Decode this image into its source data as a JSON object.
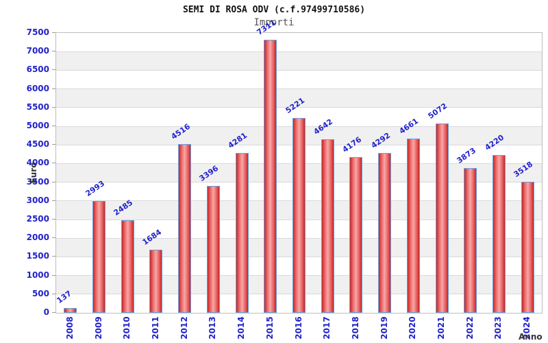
{
  "chart_data": {
    "type": "bar",
    "title": "SEMI DI ROSA ODV (c.f.97499710586)",
    "subtitle": "Importi",
    "xlabel": "Anno",
    "ylabel": "Euro",
    "categories": [
      "2008",
      "2009",
      "2010",
      "2011",
      "2012",
      "2013",
      "2014",
      "2015",
      "2016",
      "2017",
      "2018",
      "2019",
      "2020",
      "2021",
      "2022",
      "2023",
      "2024"
    ],
    "values": [
      137,
      2993,
      2485,
      1684,
      4516,
      3396,
      4281,
      7311,
      5221,
      4642,
      4176,
      4292,
      4661,
      5072,
      3873,
      4220,
      3518
    ],
    "ylim": [
      0,
      7500
    ],
    "ytick_step": 500,
    "grid": true,
    "legend": "none",
    "colors": {
      "bar_edge": "#c62626",
      "bar_mid": "#e96060",
      "bar_center": "#f7a8a8",
      "bar_border": "#6a9fdb",
      "value_label": "#2222cc",
      "tick_label": "#2222cc",
      "band_gray": "#f0f0f0",
      "band_white": "#ffffff",
      "gridline": "#d9d9d9",
      "axis_title": "#333333"
    }
  }
}
